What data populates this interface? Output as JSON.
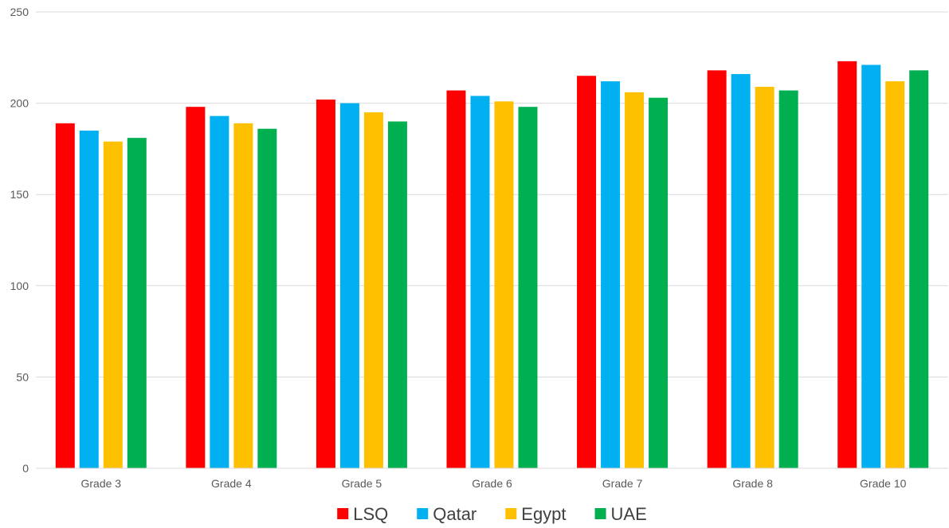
{
  "chart_data": {
    "type": "bar",
    "title": "",
    "xlabel": "",
    "ylabel": "",
    "categories": [
      "Grade 3",
      "Grade 4",
      "Grade 5",
      "Grade 6",
      "Grade 7",
      "Grade 8",
      "Grade 10"
    ],
    "series": [
      {
        "name": "LSQ",
        "color": "#ff0000",
        "values": [
          189,
          198,
          202,
          207,
          215,
          218,
          223
        ]
      },
      {
        "name": "Qatar",
        "color": "#00b0f0",
        "values": [
          185,
          193,
          200,
          204,
          212,
          216,
          221
        ]
      },
      {
        "name": "Egypt",
        "color": "#ffc000",
        "values": [
          179,
          189,
          195,
          201,
          206,
          209,
          212
        ]
      },
      {
        "name": "UAE",
        "color": "#00b050",
        "values": [
          181,
          186,
          190,
          198,
          203,
          207,
          218
        ]
      }
    ],
    "ylim": [
      0,
      250
    ],
    "yticks": [
      "0",
      "50",
      "100",
      "150",
      "200",
      "250"
    ],
    "grid": true,
    "legend_position": "bottom-center"
  }
}
